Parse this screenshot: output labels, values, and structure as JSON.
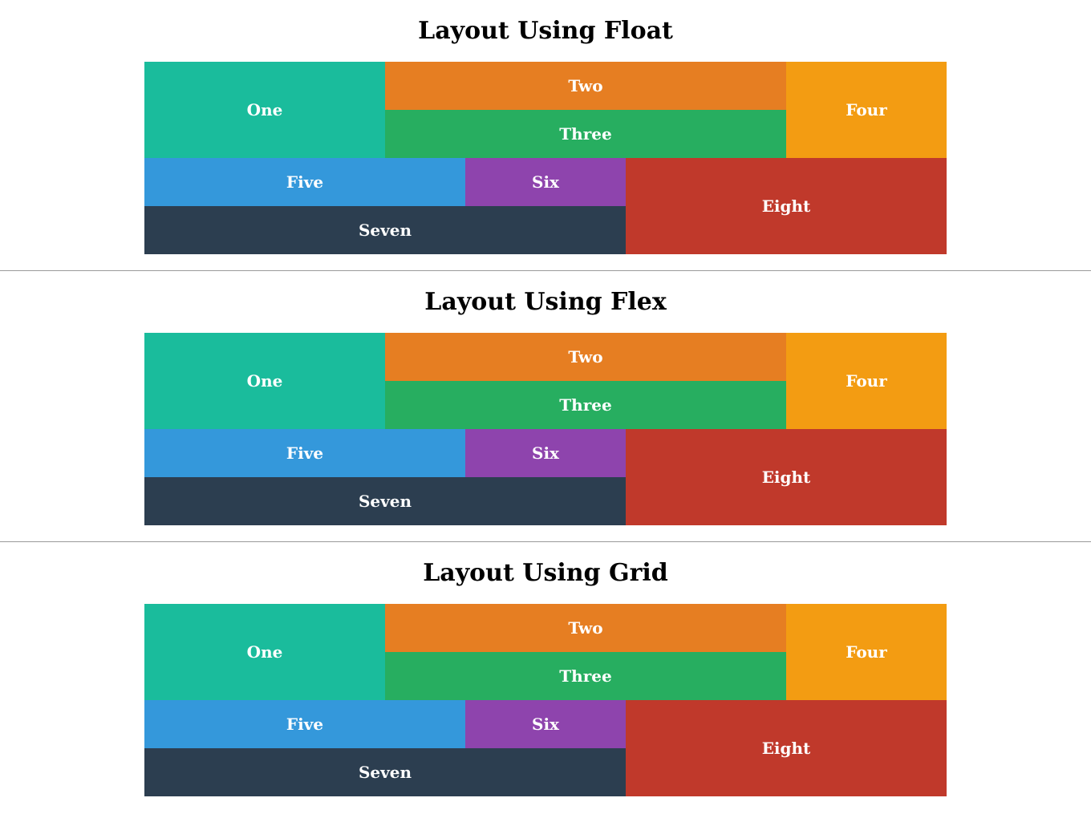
{
  "sections": [
    {
      "title": "Layout Using Float",
      "boxes": {
        "one": "One",
        "two": "Two",
        "three": "Three",
        "four": "Four",
        "five": "Five",
        "six": "Six",
        "seven": "Seven",
        "eight": "Eight"
      }
    },
    {
      "title": "Layout Using Flex",
      "boxes": {
        "one": "One",
        "two": "Two",
        "three": "Three",
        "four": "Four",
        "five": "Five",
        "six": "Six",
        "seven": "Seven",
        "eight": "Eight"
      }
    },
    {
      "title": "Layout Using Grid",
      "boxes": {
        "one": "One",
        "two": "Two",
        "three": "Three",
        "four": "Four",
        "five": "Five",
        "six": "Six",
        "seven": "Seven",
        "eight": "Eight"
      }
    }
  ],
  "colors": {
    "one": "#1abc9c",
    "two": "#e67e22",
    "three": "#27ae60",
    "four": "#f39c12",
    "five": "#3498db",
    "six": "#8e44ad",
    "seven": "#2c3e50",
    "eight": "#c0392b",
    "divider": "#9a9a9a"
  }
}
